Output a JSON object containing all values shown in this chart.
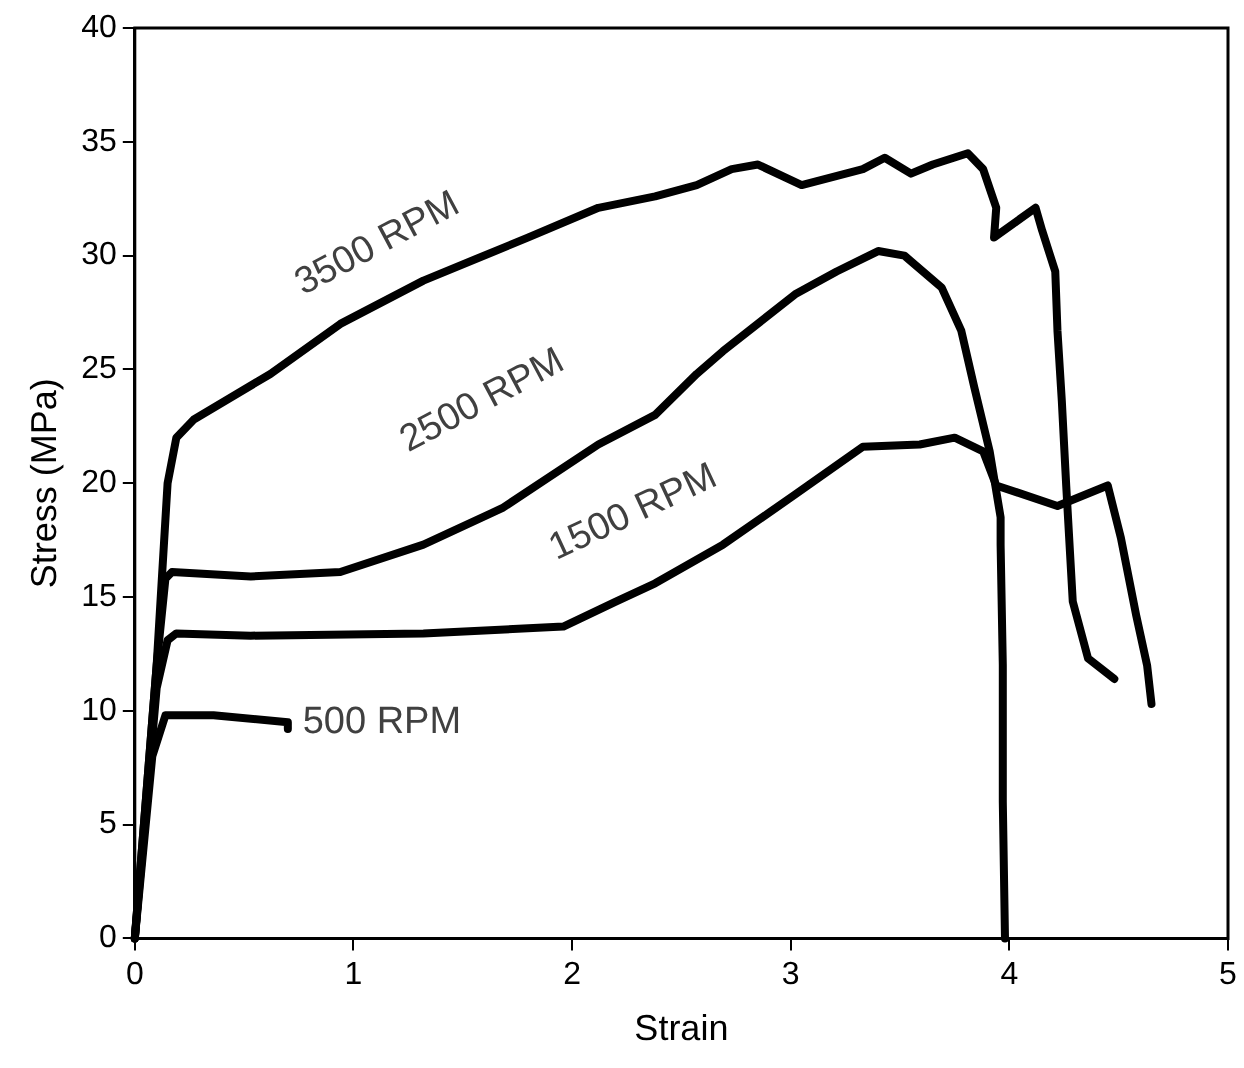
{
  "chart_data": {
    "type": "line",
    "xlabel": "Strain",
    "ylabel": "Stress (MPa)",
    "xlim": [
      0,
      5
    ],
    "xticks": [
      0,
      1,
      2,
      3,
      4,
      5
    ],
    "ylim": [
      0,
      40
    ],
    "yticks": [
      0,
      5,
      10,
      15,
      20,
      25,
      30,
      35,
      40
    ],
    "grid": false,
    "legend": false,
    "marker": "none",
    "line_style": "solid",
    "series": [
      {
        "name": "3500 RPM",
        "color": "#000000",
        "x": [
          0,
          0.1,
          0.15,
          0.19,
          0.27,
          0.62,
          0.94,
          1.32,
          1.8,
          2.12,
          2.38,
          2.57,
          2.73,
          2.85,
          3.05,
          3.33,
          3.43,
          3.55,
          3.65,
          3.81,
          3.88,
          3.94,
          3.93,
          4.12,
          4.15,
          4.21,
          4.22,
          4.24,
          4.26,
          4.29,
          4.36,
          4.48
        ],
        "values": [
          0,
          12,
          20,
          22,
          22.8,
          24.8,
          27,
          28.9,
          30.8,
          32.1,
          32.6,
          33.1,
          33.8,
          34,
          33.1,
          33.8,
          34.3,
          33.6,
          34,
          34.5,
          33.8,
          32.1,
          30.8,
          32.1,
          31.1,
          29.3,
          26.7,
          23.6,
          19.9,
          14.8,
          12.3,
          11.4
        ]
      },
      {
        "name": "2500 RPM",
        "color": "#000000",
        "x": [
          0,
          0.1,
          0.14,
          0.17,
          0.53,
          0.94,
          1.32,
          1.68,
          2.12,
          2.38,
          2.57,
          2.69,
          3.02,
          3.21,
          3.4,
          3.52,
          3.69,
          3.78,
          3.84,
          3.91,
          3.96,
          3.96,
          3.97,
          3.97,
          3.98
        ],
        "values": [
          0,
          12,
          15.8,
          16.1,
          15.9,
          16.1,
          17.3,
          18.9,
          21.7,
          23,
          24.8,
          25.8,
          28.3,
          29.3,
          30.2,
          30,
          28.6,
          26.7,
          24.2,
          21.4,
          18.5,
          17.3,
          12,
          6,
          0
        ]
      },
      {
        "name": "1500 RPM",
        "color": "#000000",
        "x": [
          0,
          0.1,
          0.15,
          0.19,
          0.53,
          1.32,
          1.96,
          2.2,
          2.38,
          2.69,
          3.02,
          3.33,
          3.59,
          3.75,
          3.88,
          3.94,
          4.22,
          4.45,
          4.51,
          4.58,
          4.63,
          4.65
        ],
        "values": [
          0,
          11,
          13.1,
          13.4,
          13.3,
          13.4,
          13.7,
          14.8,
          15.6,
          17.3,
          19.5,
          21.6,
          21.7,
          22,
          21.4,
          19.9,
          19,
          19.9,
          17.6,
          14.2,
          12,
          10.3
        ]
      },
      {
        "name": "500 RPM",
        "color": "#000000",
        "x": [
          0,
          0.08,
          0.14,
          0.36,
          0.7,
          0.7
        ],
        "values": [
          0,
          8,
          9.8,
          9.8,
          9.5,
          9.2
        ]
      }
    ]
  }
}
